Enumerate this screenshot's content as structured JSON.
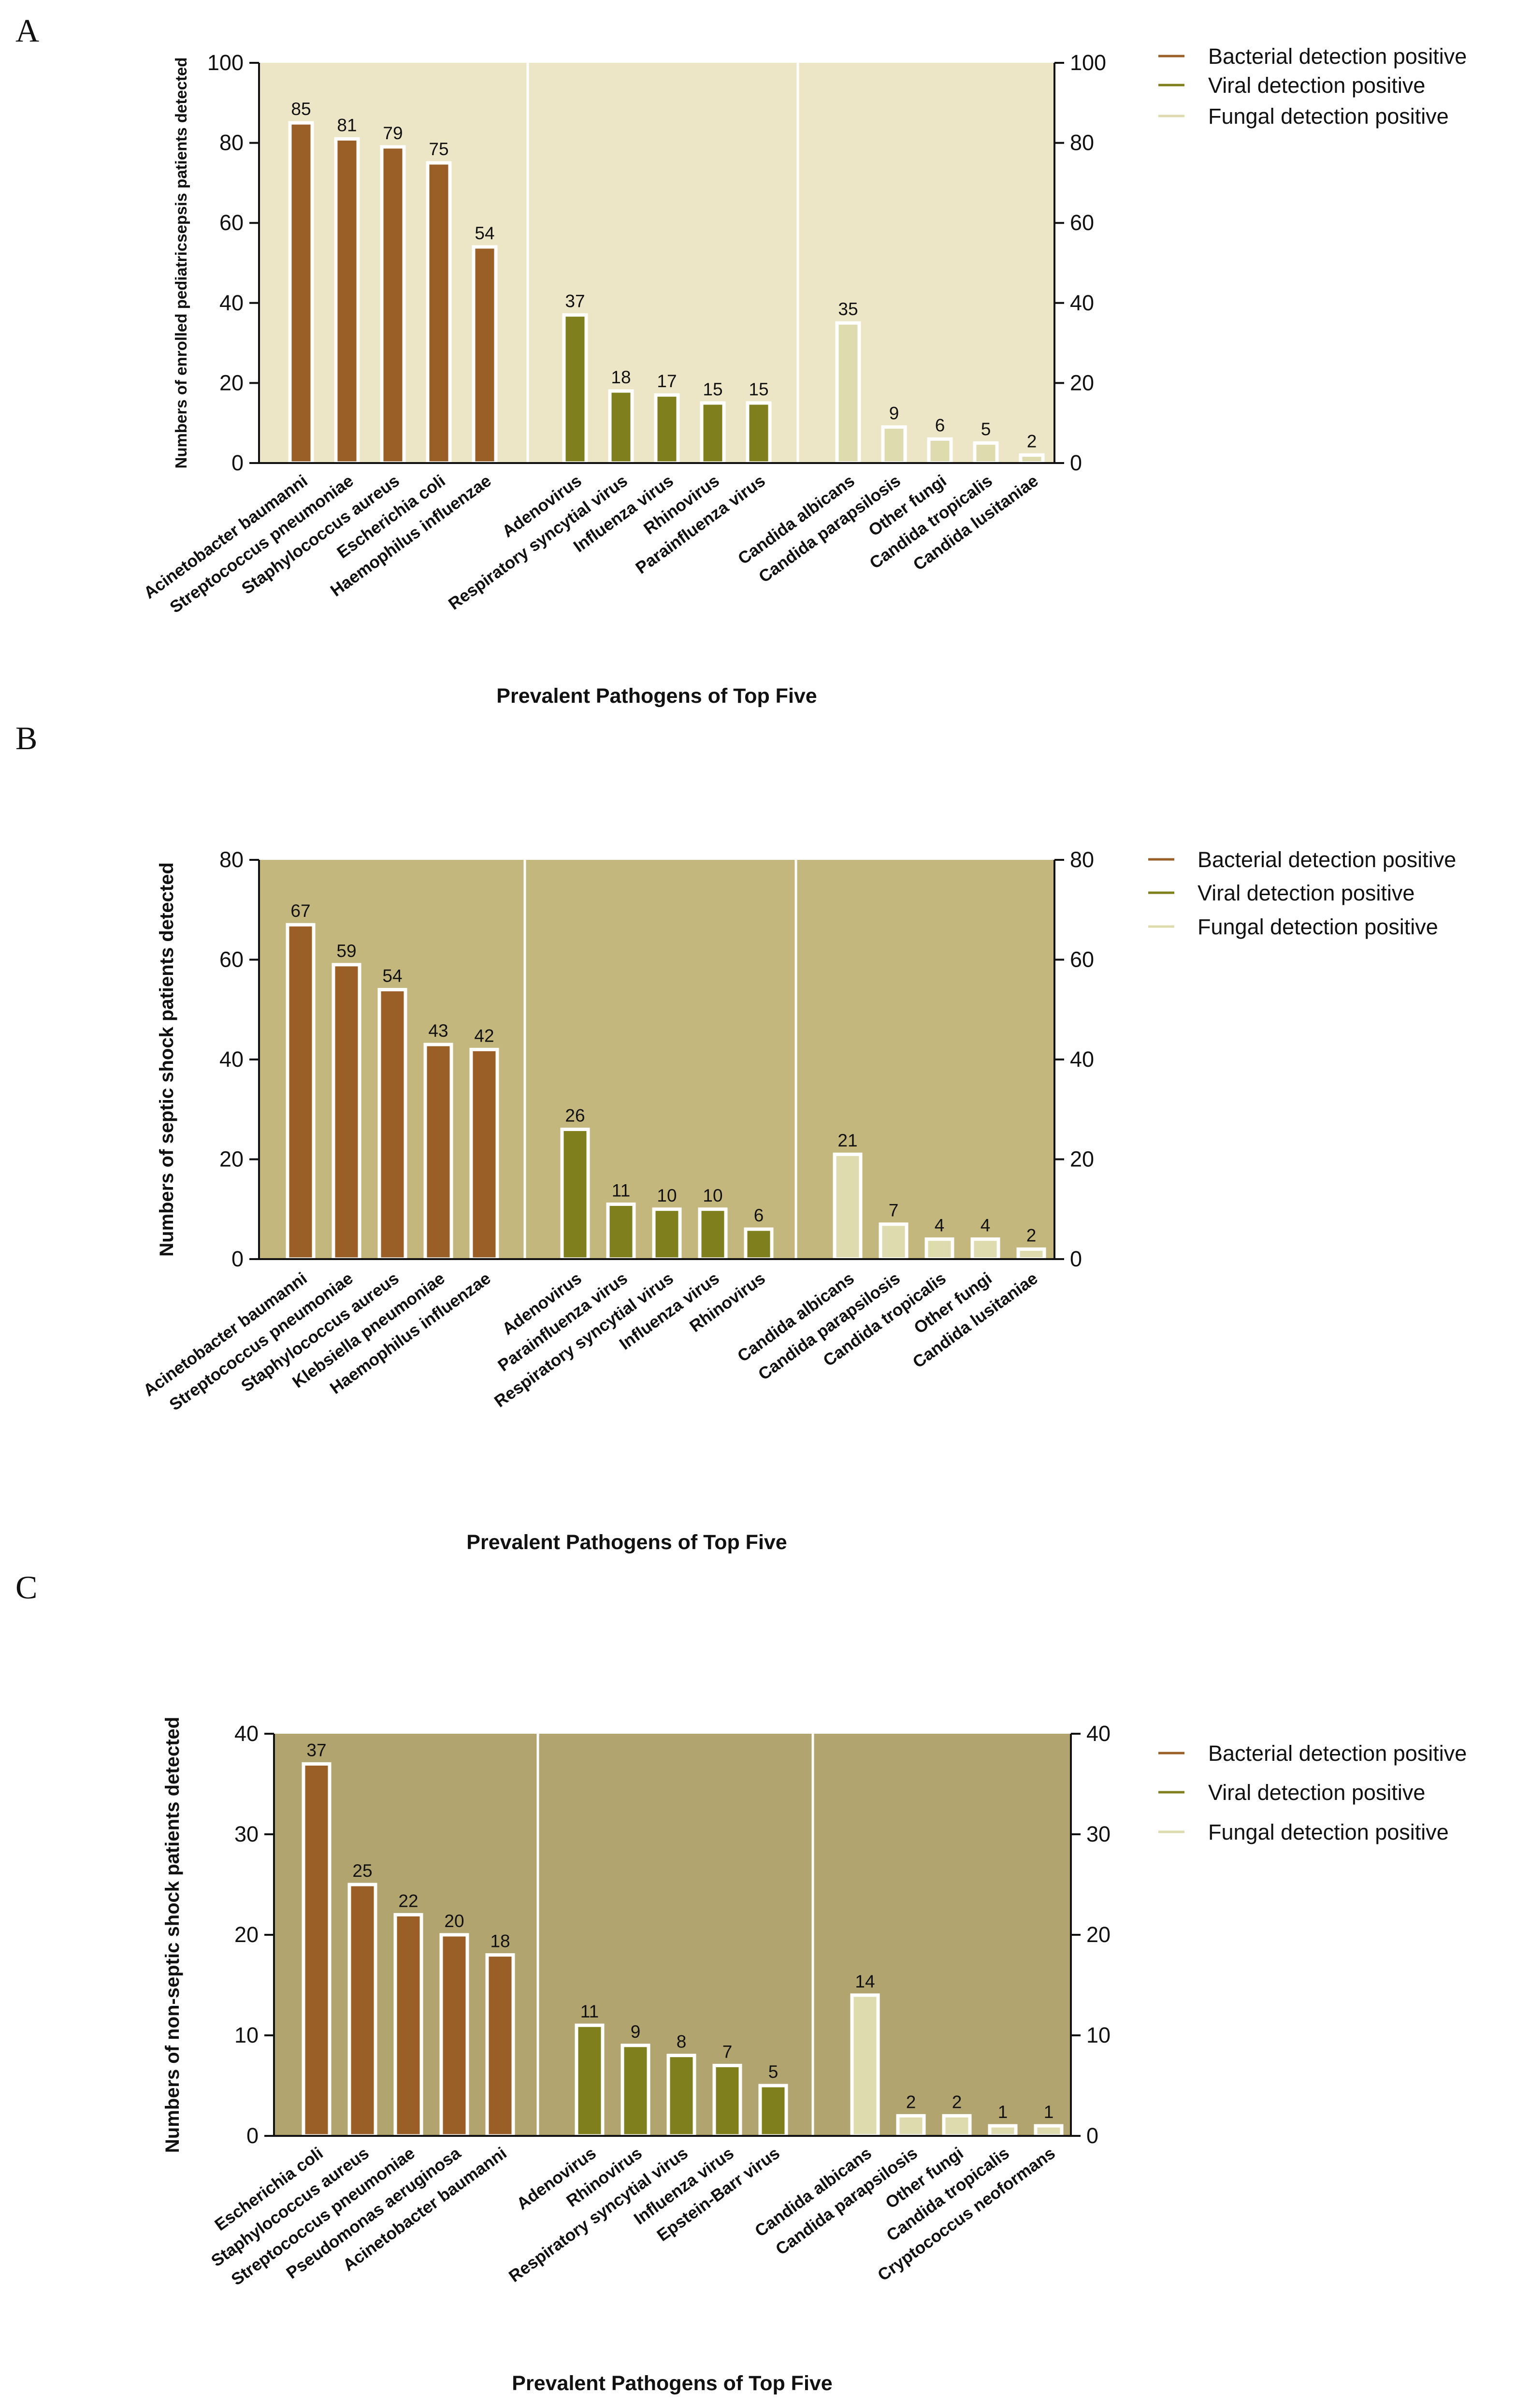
{
  "legend": {
    "bacterial": "Bacterial detection positive",
    "viral": "Viral detection positive",
    "fungal": "Fungal detection positive"
  },
  "colors": {
    "bacterial": "#9a5f26",
    "viral": "#7f7f1d",
    "fungal": "#dedcae",
    "bar_outline": "#ffffff"
  },
  "chart_data": [
    {
      "panel": "A",
      "type": "bar",
      "background": "#ede6c6",
      "title": "",
      "ylabel": "Numbers of enrolled pediatricsepsis patients detected",
      "xlabel": "Prevalent Pathogens of Top Five",
      "ylim": [
        0,
        100
      ],
      "yticks": [
        0,
        20,
        40,
        60,
        80,
        100
      ],
      "groups": [
        {
          "name": "Bacterial detection positive",
          "key": "bacterial",
          "categories": [
            "Acinetobacter baumanni",
            "Streptococcus pneumoniae",
            "Staphylococcus aureus",
            "Escherichia coli",
            "Haemophilus influenzae"
          ],
          "values": [
            85,
            81,
            79,
            75,
            54
          ]
        },
        {
          "name": "Viral detection positive",
          "key": "viral",
          "categories": [
            "Adenovirus",
            "Respiratory syncytial virus",
            "Influenza virus",
            "Rhinovirus",
            "Parainfluenza virus"
          ],
          "values": [
            37,
            18,
            17,
            15,
            15
          ]
        },
        {
          "name": "Fungal detection positive",
          "key": "fungal",
          "categories": [
            "Candida albicans",
            "Candida parapsilosis",
            "Other fungi",
            "Candida tropicalis",
            "Candida lusitaniae"
          ],
          "values": [
            35,
            9,
            6,
            5,
            2
          ]
        }
      ]
    },
    {
      "panel": "B",
      "type": "bar",
      "background": "#c3b77d",
      "title": "",
      "ylabel": "Numbers of septic shock patients detected",
      "xlabel": "Prevalent Pathogens of Top Five",
      "ylim": [
        0,
        80
      ],
      "yticks": [
        0,
        20,
        40,
        60,
        80
      ],
      "groups": [
        {
          "name": "Bacterial detection positive",
          "key": "bacterial",
          "categories": [
            "Acinetobacter baumanni",
            "Streptococcus pneumoniae",
            "Staphylococcus aureus",
            "Klebsiella pneumoniae",
            "Haemophilus influenzae"
          ],
          "values": [
            67,
            59,
            54,
            43,
            42
          ]
        },
        {
          "name": "Viral detection positive",
          "key": "viral",
          "categories": [
            "Adenovirus",
            "Parainfluenza virus",
            "Respiratory syncytial virus",
            "Influenza virus",
            "Rhinovirus"
          ],
          "values": [
            26,
            11,
            10,
            10,
            6
          ]
        },
        {
          "name": "Fungal detection positive",
          "key": "fungal",
          "categories": [
            "Candida albicans",
            "Candida parapsilosis",
            "Candida tropicalis",
            "Other fungi",
            "Candida lusitaniae"
          ],
          "values": [
            21,
            7,
            4,
            4,
            2
          ]
        }
      ]
    },
    {
      "panel": "C",
      "type": "bar",
      "background": "#b1a46f",
      "title": "",
      "ylabel": "Numbers of non-septic shock patients detected",
      "xlabel": "Prevalent Pathogens of Top Five",
      "ylim": [
        0,
        40
      ],
      "yticks": [
        0,
        10,
        20,
        30,
        40
      ],
      "groups": [
        {
          "name": "Bacterial detection positive",
          "key": "bacterial",
          "categories": [
            "Escherichia coli",
            "Staphylococcus aureus",
            "Streptococcus pneumoniae",
            "Pseudomonas aeruginosa",
            "Acinetobacter baumanni"
          ],
          "values": [
            37,
            25,
            22,
            20,
            18
          ]
        },
        {
          "name": "Viral detection positive",
          "key": "viral",
          "categories": [
            "Adenovirus",
            "Rhinovirus",
            "Respiratory syncytial virus",
            "Influenza virus",
            "Epstein-Barr virus"
          ],
          "values": [
            11,
            9,
            8,
            7,
            5
          ]
        },
        {
          "name": "Fungal detection positive",
          "key": "fungal",
          "categories": [
            "Candida albicans",
            "Candida parapsilosis",
            "Other fungi",
            "Candida tropicalis",
            "Cryptococcus neoformans"
          ],
          "values": [
            14,
            2,
            2,
            1,
            1
          ]
        }
      ]
    }
  ]
}
